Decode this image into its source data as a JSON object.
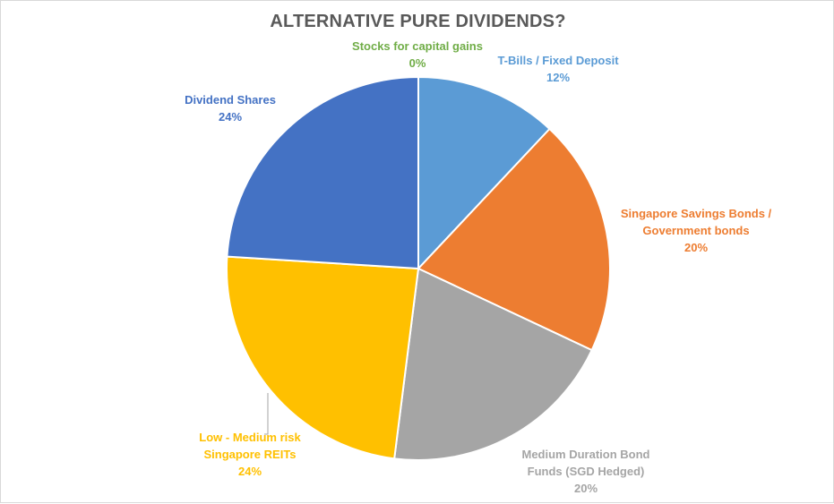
{
  "chart_data": {
    "type": "pie",
    "title": "ALTERNATIVE PURE DIVIDENDS?",
    "legend": "none",
    "slices": [
      {
        "name": "Stocks for capital gains",
        "label_lines": [
          "Stocks for capital gains"
        ],
        "value": 0,
        "value_label": "0%",
        "color": "#70ad47"
      },
      {
        "name": "T-Bills / Fixed Deposit",
        "label_lines": [
          "T-Bills / Fixed Deposit"
        ],
        "value": 12,
        "value_label": "12%",
        "color": "#5b9bd5"
      },
      {
        "name": "Singapore Savings Bonds / Government bonds",
        "label_lines": [
          "Singapore Savings Bonds /",
          "Government bonds"
        ],
        "value": 20,
        "value_label": "20%",
        "color": "#ed7d31"
      },
      {
        "name": "Medium Duration Bond Funds (SGD Hedged)",
        "label_lines": [
          "Medium Duration Bond",
          "Funds (SGD Hedged)"
        ],
        "value": 20,
        "value_label": "20%",
        "color": "#a5a5a5"
      },
      {
        "name": "Low - Medium risk Singapore REITs",
        "label_lines": [
          "Low - Medium risk",
          "Singapore REITs"
        ],
        "value": 24,
        "value_label": "24%",
        "color": "#ffc000"
      },
      {
        "name": "Dividend Shares",
        "label_lines": [
          "Dividend Shares"
        ],
        "value": 24,
        "value_label": "24%",
        "color": "#4472c4"
      }
    ]
  }
}
